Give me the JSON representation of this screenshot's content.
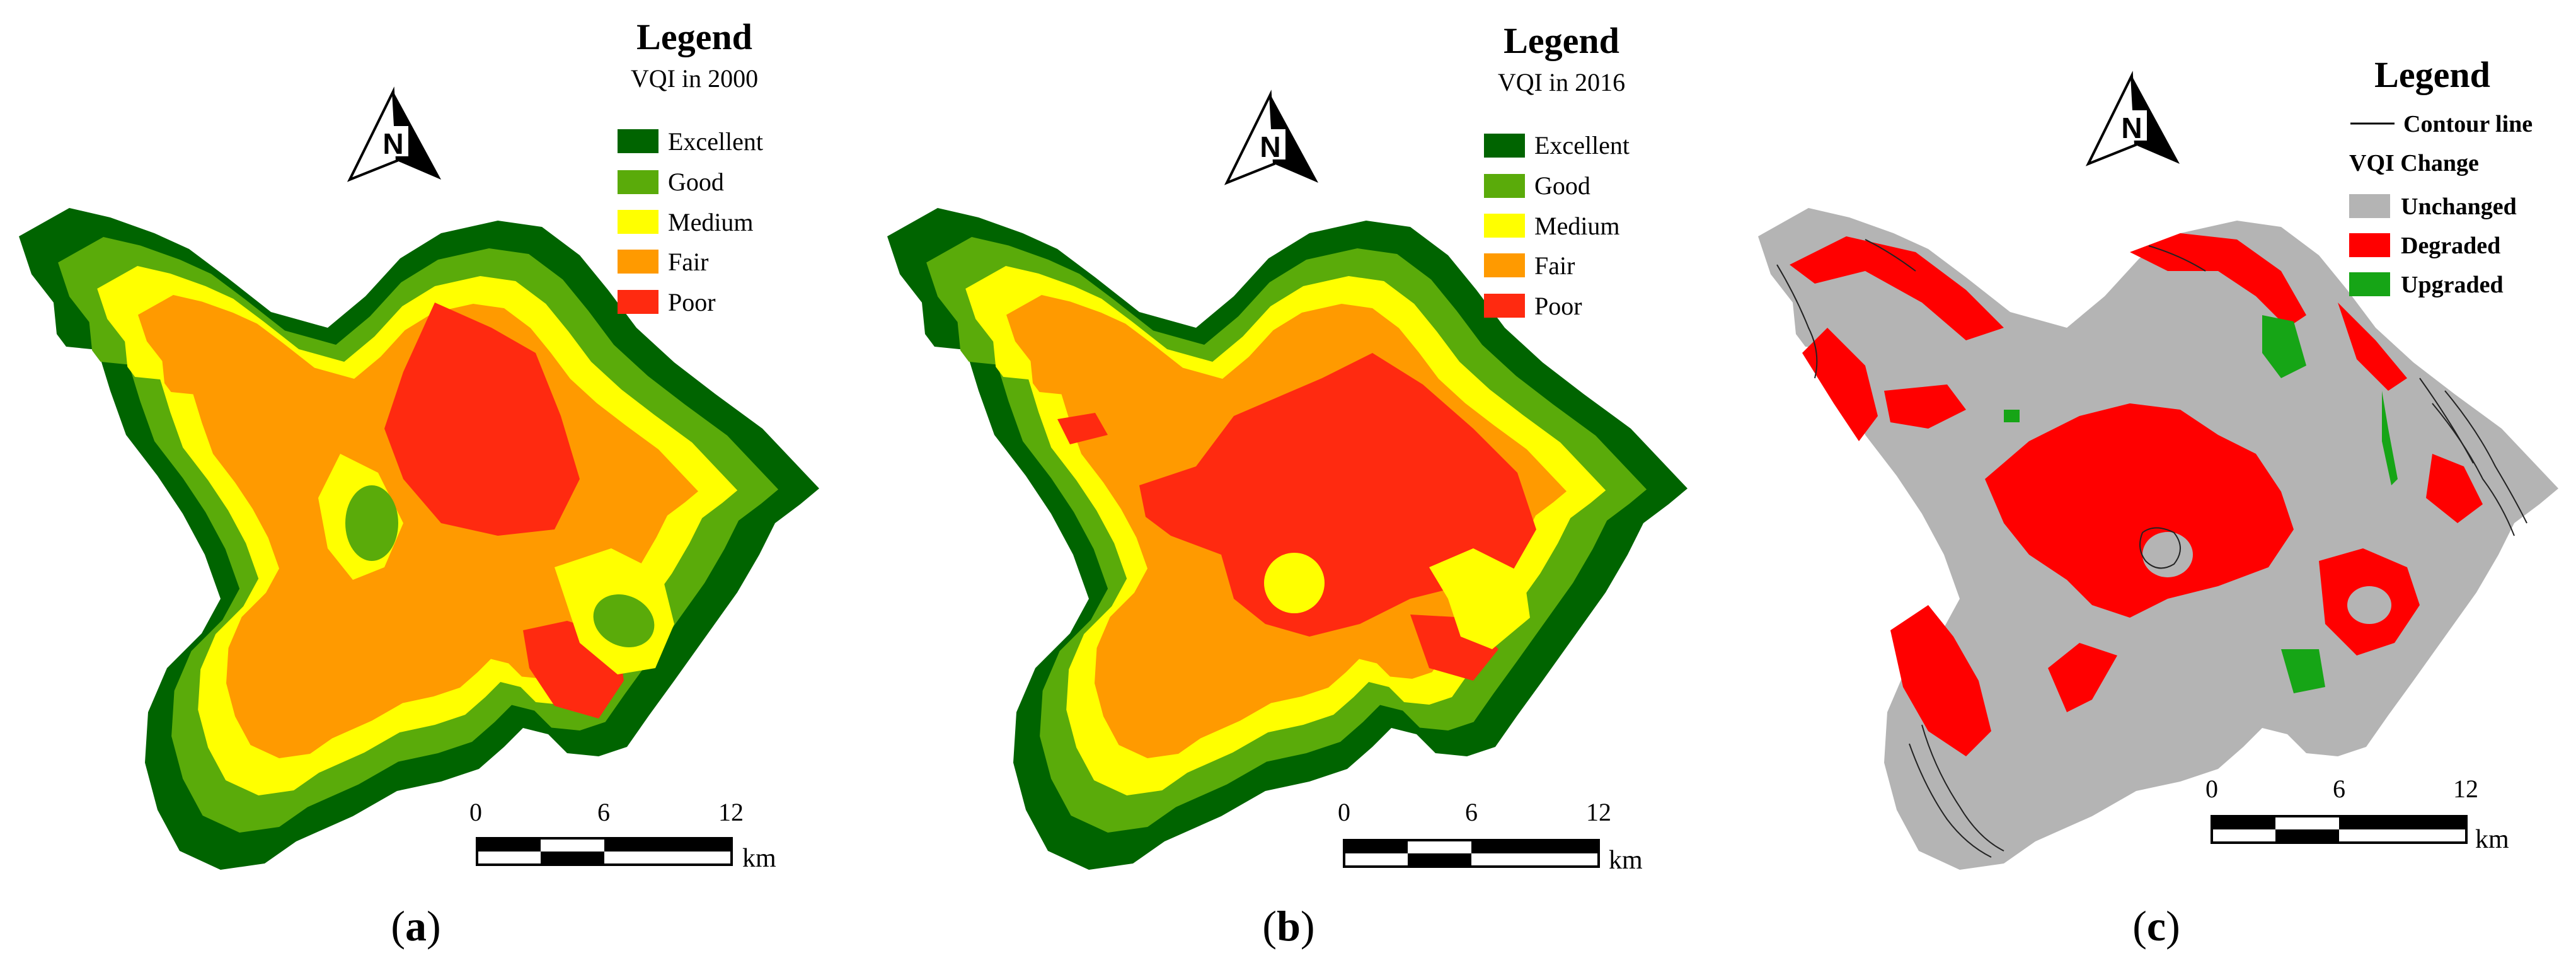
{
  "panels": [
    {
      "id": "a",
      "caption": {
        "open": "(",
        "letter": "a",
        "close": ")"
      },
      "legend": {
        "title": "Legend",
        "subtitle": "VQI in 2000",
        "items": [
          {
            "label": "Excellent",
            "color": "#006400"
          },
          {
            "label": "Good",
            "color": "#5aab0a"
          },
          {
            "label": "Medium",
            "color": "#ffff00"
          },
          {
            "label": "Fair",
            "color": "#ff9a00"
          },
          {
            "label": "Poor",
            "color": "#ff2a10"
          }
        ]
      },
      "north_arrow": {
        "letter": "N"
      },
      "scale_bar": {
        "ticks": [
          "0",
          "6",
          "12"
        ],
        "unit": "km"
      }
    },
    {
      "id": "b",
      "caption": {
        "open": "(",
        "letter": "b",
        "close": ")"
      },
      "legend": {
        "title": "Legend",
        "subtitle": "VQI in 2016",
        "items": [
          {
            "label": "Excellent",
            "color": "#006400"
          },
          {
            "label": "Good",
            "color": "#5aab0a"
          },
          {
            "label": "Medium",
            "color": "#ffff00"
          },
          {
            "label": "Fair",
            "color": "#ff9a00"
          },
          {
            "label": "Poor",
            "color": "#ff2a10"
          }
        ]
      },
      "north_arrow": {
        "letter": "N"
      },
      "scale_bar": {
        "ticks": [
          "0",
          "6",
          "12"
        ],
        "unit": "km"
      }
    },
    {
      "id": "c",
      "caption": {
        "open": "(",
        "letter": "c",
        "close": ")"
      },
      "legend": {
        "title": "Legend",
        "line_item": "Contour line",
        "subtitle": "VQI Change",
        "items": [
          {
            "label": "Unchanged",
            "color": "#b4b4b4"
          },
          {
            "label": "Degraded",
            "color": "#ff0000"
          },
          {
            "label": "Upgraded",
            "color": "#16a516"
          }
        ]
      },
      "north_arrow": {
        "letter": "N"
      },
      "scale_bar": {
        "ticks": [
          "0",
          "6",
          "12"
        ],
        "unit": "km"
      }
    }
  ]
}
